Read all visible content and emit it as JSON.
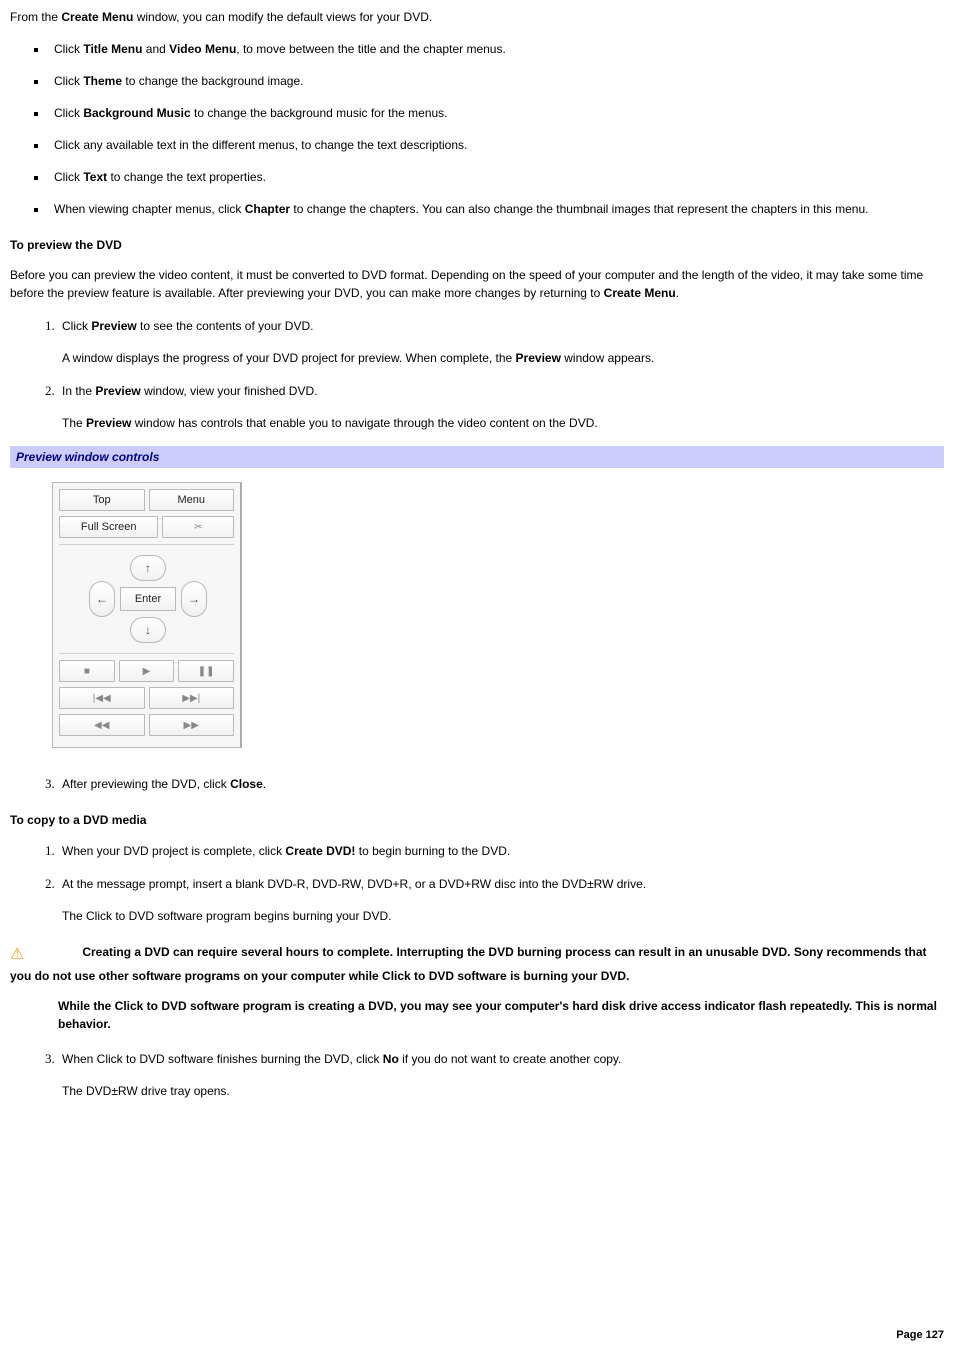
{
  "intro": {
    "pre": "From the ",
    "bold": "Create Menu",
    "post": " window, you can modify the default views for your DVD."
  },
  "bullets": [
    {
      "pre": "Click ",
      "b1": "Title Menu",
      "mid": " and ",
      "b2": "Video Menu",
      "post": ", to move between the title and the chapter menus."
    },
    {
      "pre": "Click ",
      "b1": "Theme",
      "post": " to change the background image."
    },
    {
      "pre": "Click ",
      "b1": "Background Music",
      "post": " to change the background music for the menus."
    },
    {
      "plain": "Click any available text in the different menus, to change the text descriptions."
    },
    {
      "pre": "Click ",
      "b1": "Text",
      "post": " to change the text properties."
    },
    {
      "pre": "When viewing chapter menus, click ",
      "b1": "Chapter",
      "post": " to change the chapters. You can also change the thumbnail images that represent the chapters in this menu."
    }
  ],
  "preview": {
    "heading": "To preview the DVD",
    "para_pre": "Before you can preview the video content, it must be converted to DVD format. Depending on the speed of your computer and the length of the video, it may take some time before the preview feature is available. After previewing your DVD, you can make more changes by returning to ",
    "para_bold": "Create Menu",
    "para_post": ".",
    "step1_pre": "Click ",
    "step1_b": "Preview",
    "step1_post": " to see the contents of your DVD.",
    "step1_sub_pre": "A window displays the progress of your DVD project for preview. When complete, the ",
    "step1_sub_b": "Preview",
    "step1_sub_post": " window appears.",
    "step2_pre": "In the ",
    "step2_b": "Preview",
    "step2_post": " window, view your finished DVD.",
    "step2_sub_pre": "The ",
    "step2_sub_b": "Preview",
    "step2_sub_post": " window has controls that enable you to navigate through the video content on the DVD.",
    "panel_title": "Preview window controls",
    "step3_pre": "After previewing the DVD, click ",
    "step3_b": "Close",
    "step3_post": "."
  },
  "controls": {
    "top": "Top",
    "menu": "Menu",
    "fullscreen": "Full Screen",
    "tool_icon": "✂",
    "enter": "Enter",
    "up": "↑",
    "down": "↓",
    "left": "←",
    "right": "→",
    "stop": "■",
    "play": "▶",
    "pause": "❚❚",
    "prev": "|◀◀",
    "next": "▶▶|",
    "rew": "◀◀",
    "ff": "▶▶"
  },
  "copy": {
    "heading": "To copy to a DVD media",
    "step1_pre": "When your DVD project is complete, click ",
    "step1_b": "Create DVD!",
    "step1_post": " to begin burning to the DVD.",
    "step2": "At the message prompt, insert a blank DVD-R, DVD-RW, DVD+R, or a DVD+RW disc into the DVD±RW drive.",
    "step2_sub": "The Click to DVD    software program begins burning your DVD.",
    "warning_icon": "⚠",
    "warning": "Creating a DVD can require several hours to complete. Interrupting the DVD burning process can result in an unusable DVD. Sony recommends that you do not use other software programs on your computer while Click to DVD software is burning your DVD.",
    "warning2": "While the Click to DVD software program is creating a DVD, you may see your computer's hard disk drive access indicator flash repeatedly. This is normal behavior.",
    "step3_pre": "When Click to DVD software finishes burning the DVD, click ",
    "step3_b": "No",
    "step3_post": " if you do not want to create another copy.",
    "step3_sub": "The DVD±RW drive tray opens."
  },
  "footer": {
    "page": "Page 127"
  },
  "colors": {
    "bluebar_bg": "#ccccff",
    "bluebar_text": "#000080",
    "warn_icon": "#f0a020"
  }
}
